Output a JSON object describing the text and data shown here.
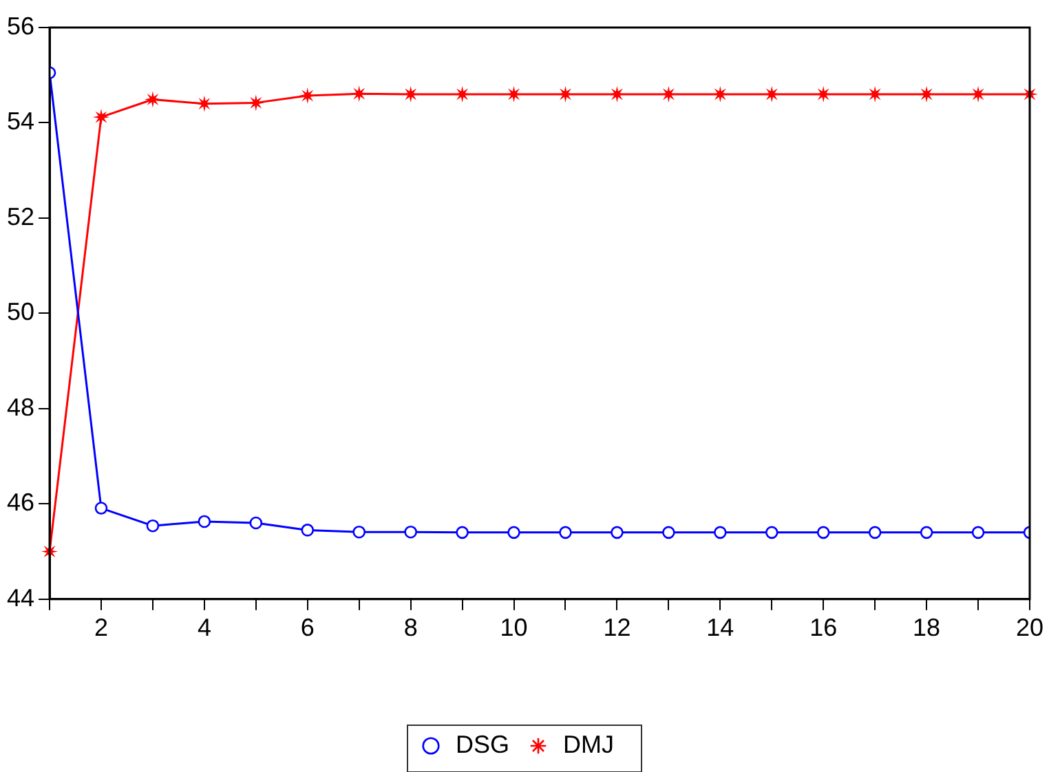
{
  "chart_data": {
    "type": "line",
    "x": [
      1,
      2,
      3,
      4,
      5,
      6,
      7,
      8,
      9,
      10,
      11,
      12,
      13,
      14,
      15,
      16,
      17,
      18,
      19,
      20
    ],
    "series": [
      {
        "name": "DSG",
        "color": "#0000ff",
        "marker": "circle",
        "values": [
          55.05,
          45.91,
          45.54,
          45.63,
          45.6,
          45.45,
          45.41,
          45.41,
          45.4,
          45.4,
          45.4,
          45.4,
          45.4,
          45.4,
          45.4,
          45.4,
          45.4,
          45.4,
          45.4,
          45.4
        ]
      },
      {
        "name": "DMJ",
        "color": "#ff0000",
        "marker": "star",
        "values": [
          45.0,
          54.12,
          54.49,
          54.4,
          54.42,
          54.57,
          54.61,
          54.6,
          54.6,
          54.6,
          54.6,
          54.6,
          54.6,
          54.6,
          54.6,
          54.6,
          54.6,
          54.6,
          54.6,
          54.6
        ]
      }
    ],
    "xlim": [
      1,
      20
    ],
    "xticks": [
      {
        "value": 1,
        "label": null
      },
      2,
      {
        "value": 3,
        "label": null
      },
      4,
      {
        "value": 5,
        "label": null
      },
      6,
      {
        "value": 7,
        "label": null
      },
      8,
      {
        "value": 9,
        "label": null
      },
      10,
      {
        "value": 11,
        "label": null
      },
      12,
      {
        "value": 13,
        "label": null
      },
      14,
      {
        "value": 15,
        "label": null
      },
      16,
      {
        "value": 17,
        "label": null
      },
      18,
      {
        "value": 19,
        "label": null
      },
      20
    ],
    "ylim": [
      44,
      56
    ],
    "yticks": [
      44,
      46,
      48,
      50,
      52,
      54,
      56
    ],
    "grid": false,
    "legend": "bottom",
    "line_style": "solid"
  }
}
